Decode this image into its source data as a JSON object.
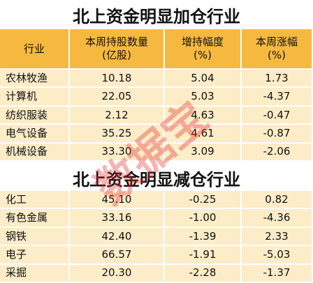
{
  "sections": [
    {
      "title": "北上资金明显加仓行业",
      "table": {
        "header": [
          [
            "行业"
          ],
          [
            "本周持股数量",
            "(亿股)"
          ],
          [
            "增持幅度",
            "(%)"
          ],
          [
            "本周涨幅",
            "(%)"
          ]
        ],
        "rows": [
          [
            "农林牧渔",
            "10.18",
            "5.04",
            "1.73"
          ],
          [
            "计算机",
            "22.05",
            "5.03",
            "-4.37"
          ],
          [
            "纺织服装",
            "2.12",
            "4.63",
            "-0.47"
          ],
          [
            "电气设备",
            "35.25",
            "4.61",
            "-0.87"
          ],
          [
            "机械设备",
            "33.30",
            "3.09",
            "-2.06"
          ]
        ]
      }
    },
    {
      "title": "北上资金明显减仓行业",
      "table": {
        "rows": [
          [
            "化工",
            "45.10",
            "-0.25",
            "0.82"
          ],
          [
            "有色金属",
            "33.16",
            "-1.00",
            "-4.36"
          ],
          [
            "钢铁",
            "42.40",
            "-1.39",
            "2.33"
          ],
          [
            "电子",
            "66.57",
            "-1.91",
            "-5.03"
          ],
          [
            "采掘",
            "20.30",
            "-2.28",
            "-1.37"
          ]
        ]
      }
    }
  ],
  "watermark": "数据宝"
}
